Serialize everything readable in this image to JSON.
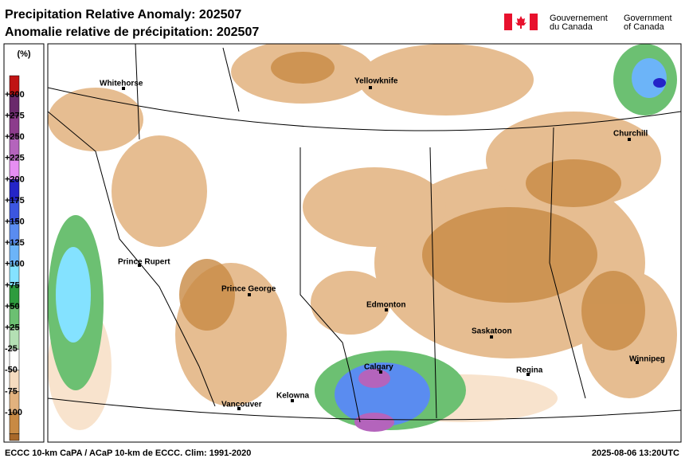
{
  "header": {
    "title_en": "Precipitation Relative Anomaly: 202507",
    "title_fr": "Anomalie relative de précipitation: 202507",
    "gov_fr": [
      "Gouvernement",
      "du Canada"
    ],
    "gov_en": [
      "Government",
      "of Canada"
    ]
  },
  "legend": {
    "unit": "(%)",
    "labels": [
      "+300",
      "+275",
      "+250",
      "+225",
      "+200",
      "+175",
      "+150",
      "+125",
      "+100",
      "+75",
      "+50",
      "+25",
      "-25",
      "-50",
      "-75",
      "-100"
    ],
    "colors": [
      "#c01414",
      "#6a2a6c",
      "#8c3c8c",
      "#b464bc",
      "#e68ef2",
      "#2424c8",
      "#3c56e0",
      "#5a8cf0",
      "#6cb4f8",
      "#84e2ff",
      "#2e9c3e",
      "#6cc072",
      "#b4e0b4",
      "#ffffff",
      "#f6dcc0",
      "#e2b27e",
      "#c88a44",
      "#a8682a"
    ]
  },
  "cities": [
    {
      "name": "Whitehorse"
    },
    {
      "name": "Yellowknife"
    },
    {
      "name": "Churchill"
    },
    {
      "name": "Prince Rupert"
    },
    {
      "name": "Prince George"
    },
    {
      "name": "Edmonton"
    },
    {
      "name": "Saskatoon"
    },
    {
      "name": "Calgary"
    },
    {
      "name": "Regina"
    },
    {
      "name": "Winnipeg"
    },
    {
      "name": "Kelowna"
    },
    {
      "name": "Vancouver"
    }
  ],
  "footer": {
    "source": "ECCC 10-km CaPA / ACaP 10-km de ECCC. Clim: 1991-2020",
    "timestamp": "2025-08-06 13:20UTC"
  }
}
